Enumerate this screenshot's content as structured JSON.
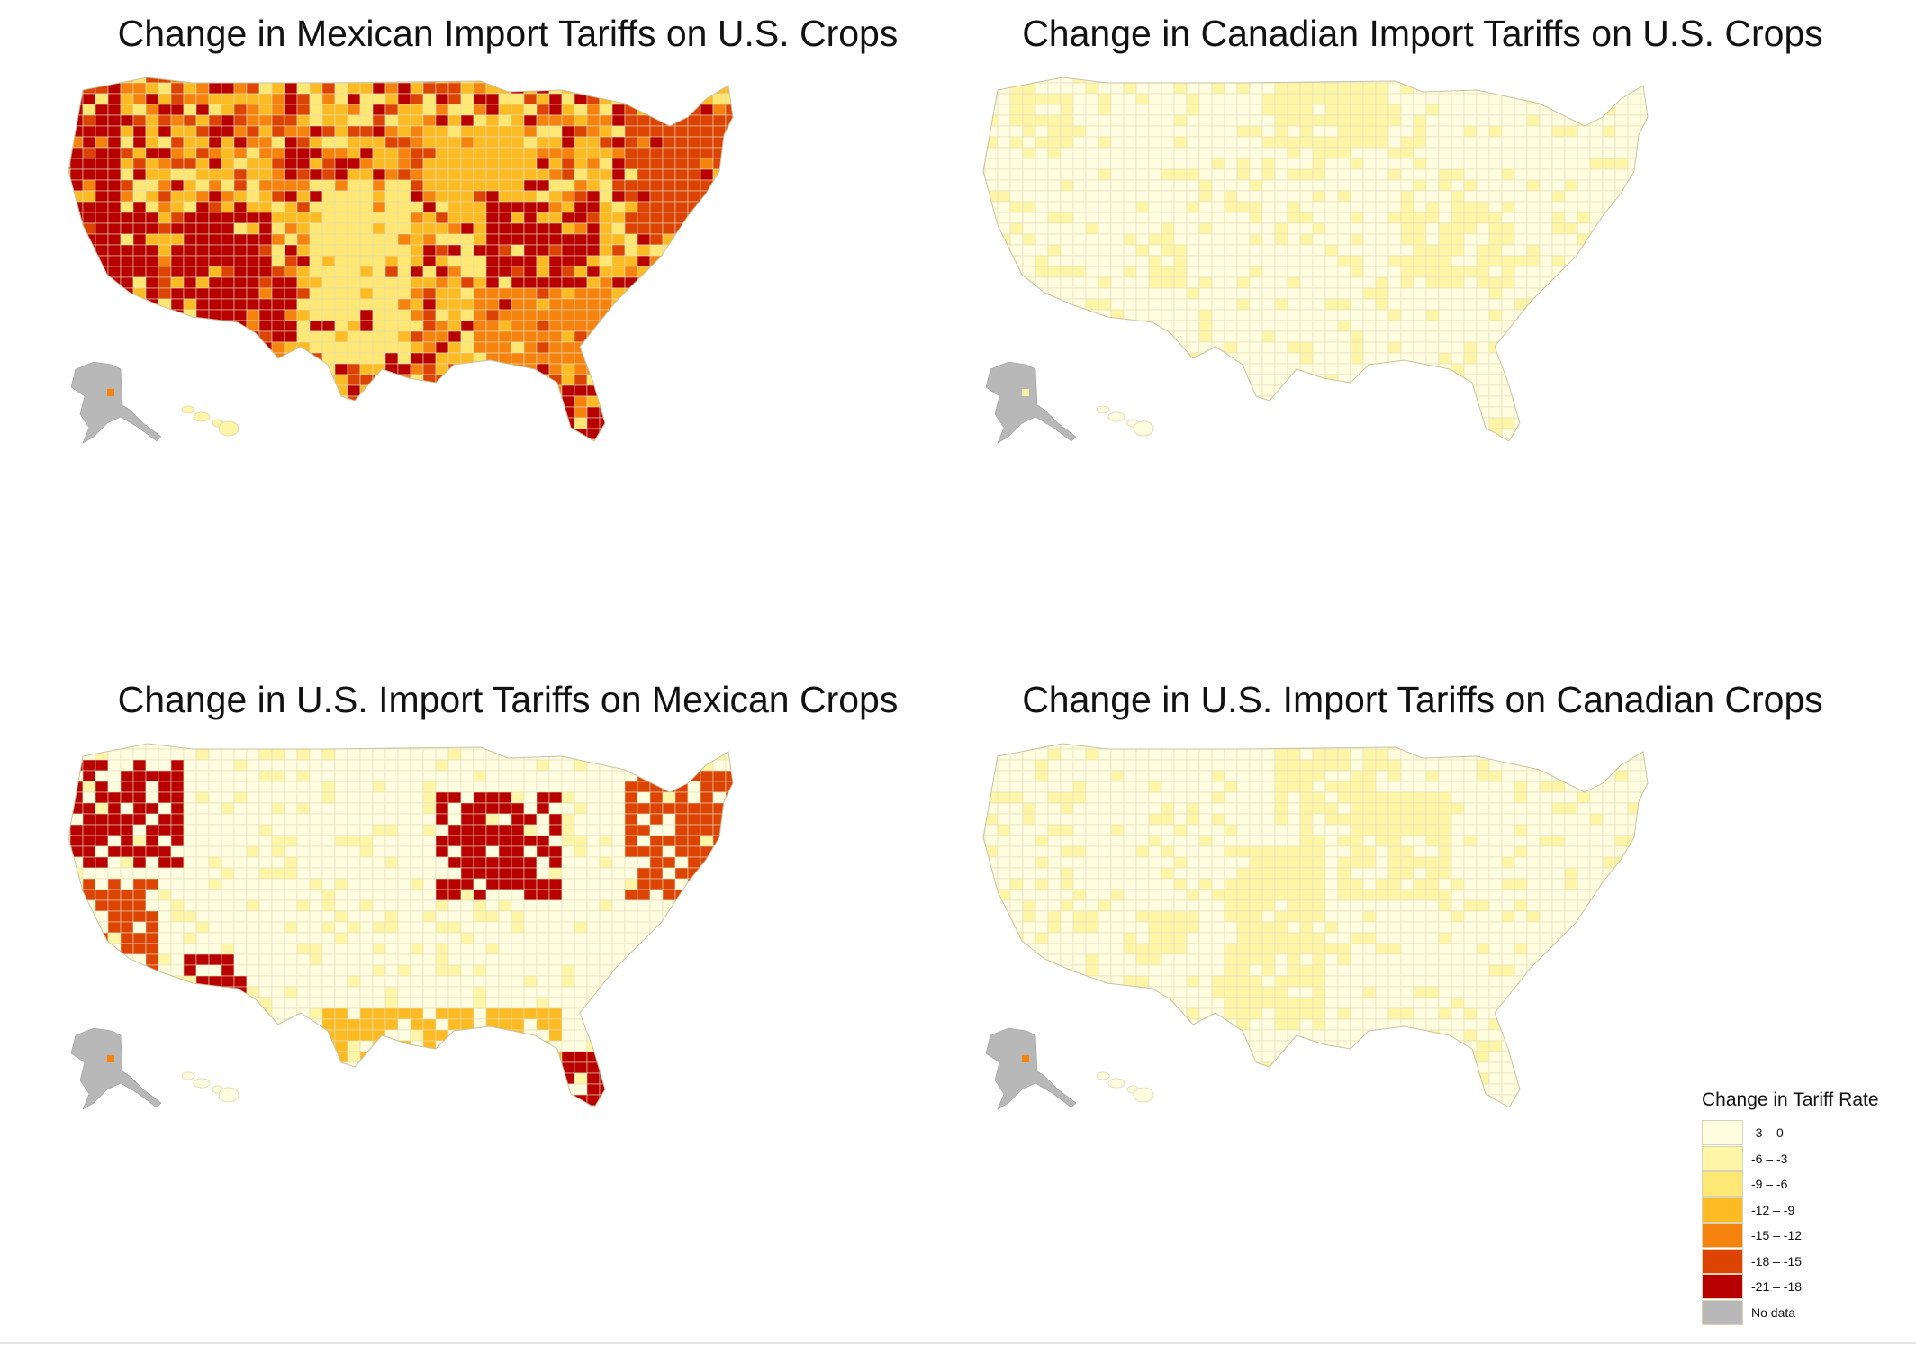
{
  "panels": [
    {
      "title": "Change in Mexican Import Tariffs on U.S. Crops",
      "map_id": "mex-on-us",
      "alaska_spot": "-15 – -12",
      "pattern": [
        "-12 – -9",
        "-15 – -12",
        "-9 – -6",
        "-18 – -15",
        "-12 – -9",
        "-21 – -18"
      ],
      "hotspots": [
        {
          "region": "west-coast",
          "class": "-21 – -18"
        },
        {
          "region": "southwest",
          "class": "-21 – -18"
        },
        {
          "region": "plains",
          "class": "-9 – -6"
        },
        {
          "region": "midwest",
          "class": "-12 – -9"
        },
        {
          "region": "appalachia",
          "class": "-21 – -18"
        },
        {
          "region": "northeast",
          "class": "-18 – -15"
        },
        {
          "region": "southeast",
          "class": "-15 – -12"
        },
        {
          "region": "florida",
          "class": "-21 – -18"
        }
      ]
    },
    {
      "title": "Change in Canadian Import Tariffs on U.S. Crops",
      "map_id": "can-on-us",
      "alaska_spot": "-6 – -3",
      "pattern": [
        "-3 – 0",
        "-3 – 0",
        "-3 – 0",
        "-6 – -3",
        "-3 – 0",
        "-3 – 0"
      ],
      "hotspots": [
        {
          "region": "northwest",
          "class": "-6 – -3"
        },
        {
          "region": "nevada",
          "class": "-6 – -3"
        },
        {
          "region": "appalachia",
          "class": "-6 – -3"
        },
        {
          "region": "north-central",
          "class": "-6 – -3"
        }
      ]
    },
    {
      "title": "Change in U.S. Import Tariffs on Mexican Crops",
      "map_id": "us-on-mex",
      "alaska_spot": "-15 – -12",
      "pattern": [
        "-3 – 0",
        "-3 – 0",
        "-3 – 0",
        "-3 – 0",
        "-6 – -3",
        "-3 – 0"
      ],
      "hotspots": [
        {
          "region": "pacific-northwest",
          "class": "-21 – -18"
        },
        {
          "region": "california",
          "class": "-18 – -15"
        },
        {
          "region": "arizona",
          "class": "-21 – -18"
        },
        {
          "region": "great-lakes",
          "class": "-21 – -18"
        },
        {
          "region": "northeast",
          "class": "-18 – -15"
        },
        {
          "region": "florida",
          "class": "-21 – -18"
        },
        {
          "region": "gulf",
          "class": "-12 – -9"
        }
      ]
    },
    {
      "title": "Change in U.S. Import Tariffs on Canadian Crops",
      "map_id": "us-on-can",
      "alaska_spot": "-15 – -12",
      "pattern": [
        "-3 – 0",
        "-3 – 0",
        "-6 – -3",
        "-3 – 0",
        "-3 – 0",
        "-3 – 0"
      ],
      "hotspots": [
        {
          "region": "plains",
          "class": "-6 – -3"
        },
        {
          "region": "nevada",
          "class": "-6 – -3"
        },
        {
          "region": "north-central",
          "class": "-6 – -3"
        },
        {
          "region": "midwest",
          "class": "-6 – -3"
        }
      ]
    }
  ],
  "legend": {
    "title": "Change in Tariff Rate",
    "items": [
      {
        "label": "-3 – 0",
        "color": "#fffde0"
      },
      {
        "label": "-6 – -3",
        "color": "#fff5a6"
      },
      {
        "label": "-9 – -6",
        "color": "#fee772"
      },
      {
        "label": "-12 – -9",
        "color": "#fdbb23"
      },
      {
        "label": "-15 – -12",
        "color": "#f7830f"
      },
      {
        "label": "-18 – -15",
        "color": "#dd4303"
      },
      {
        "label": "-21 – -18",
        "color": "#b80000"
      },
      {
        "label": "No data",
        "color": "#b8b8b8"
      }
    ]
  },
  "colors": {
    "county_border": "#e2dcbb",
    "no_data": "#b8b8b8"
  }
}
